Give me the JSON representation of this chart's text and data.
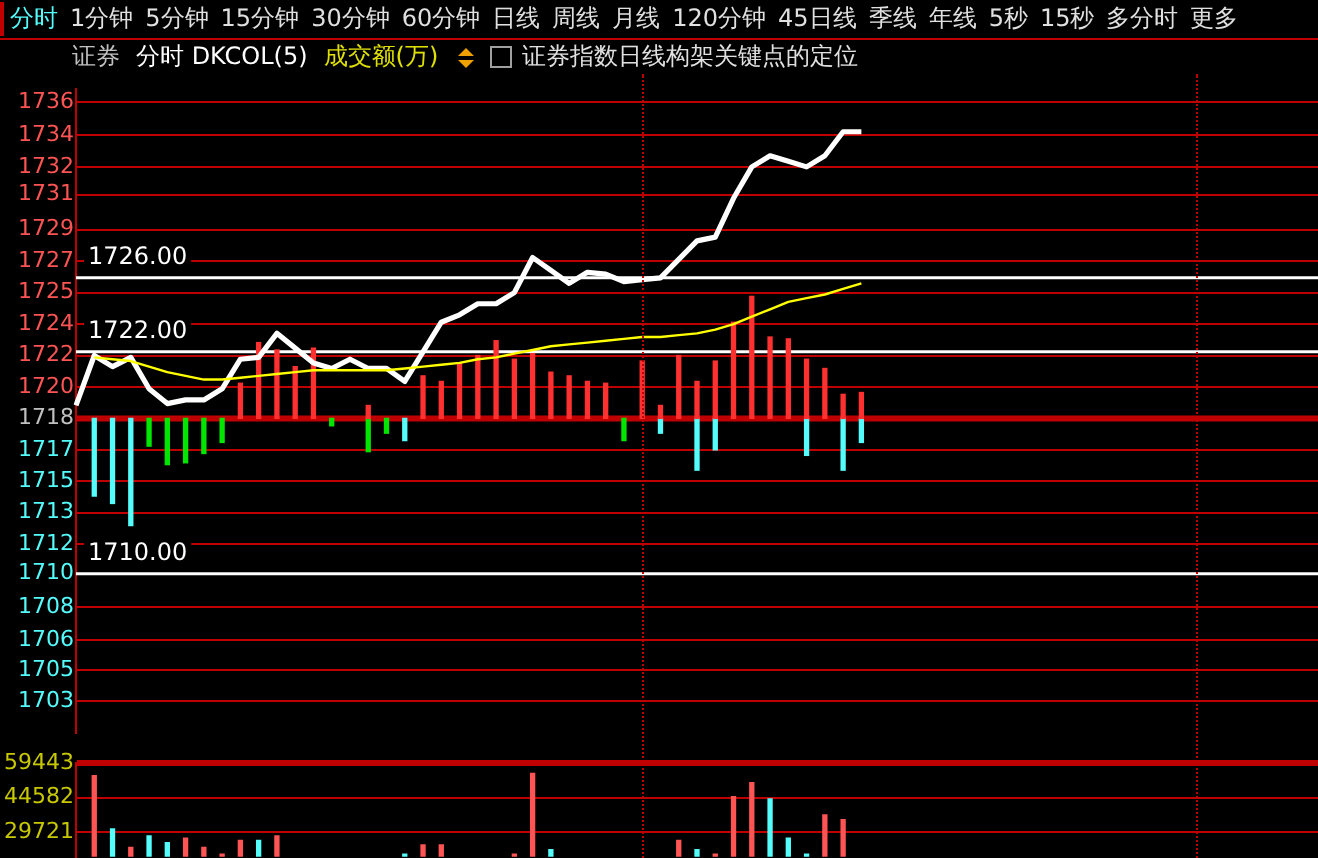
{
  "chart_data": [
    {
      "type": "bar",
      "title": "证券指数日线构架关键点的定位",
      "annotations": [
        "证券",
        "分时 DKCOL(5)",
        "成交额(万)",
        "分时",
        "1分钟",
        "5分钟",
        "15分钟",
        "30分钟",
        "60分钟",
        "日线",
        "周线",
        "月线",
        "120分钟",
        "45日线",
        "季线",
        "年线",
        "5秒",
        "15秒",
        "多分时",
        "更多"
      ],
      "categories": [
        null,
        null,
        null,
        null,
        null,
        null,
        null,
        null,
        null,
        null,
        null,
        null,
        null,
        null,
        null,
        null,
        null,
        null,
        null,
        null,
        null,
        null,
        null,
        null,
        null,
        null,
        null,
        null,
        null,
        null,
        null,
        null,
        null,
        null,
        null,
        null,
        null,
        null,
        null,
        null,
        null,
        null,
        null,
        null,
        null,
        null,
        null,
        null,
        null,
        null,
        null,
        null,
        null,
        null,
        null,
        null,
        null,
        null,
        null,
        null,
        null,
        null,
        null,
        null,
        null,
        null,
        null,
        null,
        null
      ],
      "series": [
        {
          "color": "#ff3030",
          "values": [
            null,
            null,
            null,
            null,
            null,
            null,
            null,
            null,
            null,
            1.9,
            4.1,
            3.7,
            2.8,
            3.8,
            null,
            null,
            0.7,
            null,
            null,
            2.3,
            2.0,
            3.0,
            3.4,
            4.2,
            3.2,
            3.5,
            2.5,
            2.3,
            2.0,
            1.9,
            null,
            3.1,
            0.7,
            3.4,
            2.0,
            3.1,
            5.2,
            6.6,
            4.4,
            4.3,
            3.2,
            2.7,
            1.3,
            1.4,
            null,
            null,
            null,
            null,
            null,
            null,
            null,
            null,
            null,
            null,
            null,
            null,
            null,
            null,
            null,
            null,
            null,
            null,
            null,
            null,
            null,
            null,
            null,
            null,
            null
          ],
          "base": [
            null,
            null,
            null,
            null,
            null,
            null,
            null,
            null,
            null,
            1718.4,
            1718.4,
            1718.4,
            1718.4,
            1718.4,
            null,
            null,
            1718.4,
            null,
            null,
            1718.4,
            1718.4,
            1718.4,
            1718.4,
            1718.4,
            1718.4,
            1718.4,
            1718.4,
            1718.4,
            1718.4,
            1718.4,
            null,
            1718.4,
            1718.4,
            1718.4,
            1718.4,
            1718.4,
            1718.4,
            1718.4,
            1718.4,
            1718.4,
            1718.4,
            1718.4,
            1718.4,
            1718.4,
            null,
            null,
            null,
            null,
            null,
            null,
            null,
            null,
            null,
            null,
            null,
            null,
            null,
            null,
            null,
            null,
            null,
            null,
            null,
            null,
            null,
            null,
            null,
            null,
            null
          ]
        },
        {
          "color": "#00e600",
          "values": [
            null,
            -4.2,
            -4.6,
            -5.8,
            -1.5,
            -2.5,
            -2.4,
            -1.9,
            -1.3,
            null,
            null,
            null,
            null,
            null,
            -0.4,
            null,
            -1.8,
            -0.8,
            -1.2,
            null,
            null,
            null,
            null,
            null,
            null,
            null,
            null,
            null,
            null,
            null,
            -1.2,
            null,
            -0.8,
            null,
            -2.8,
            -1.7,
            null,
            null,
            null,
            null,
            -2.0,
            null,
            -2.8,
            -1.3,
            null,
            null,
            null,
            null,
            null,
            null,
            null,
            null,
            null,
            null,
            null,
            null,
            null,
            null,
            null,
            null,
            null,
            null,
            null,
            null,
            null,
            null,
            null,
            null,
            null
          ],
          "base": [
            null,
            1718.4,
            1718.4,
            1718.4,
            1718.4,
            1718.4,
            1718.4,
            1718.4,
            1718.4,
            null,
            null,
            null,
            null,
            null,
            1718.4,
            null,
            1718.4,
            1718.4,
            1718.4,
            null,
            null,
            null,
            null,
            null,
            null,
            null,
            null,
            null,
            null,
            null,
            1718.4,
            null,
            1718.4,
            null,
            1718.4,
            1718.4,
            null,
            null,
            null,
            null,
            1718.4,
            null,
            1718.4,
            1718.4,
            null,
            null,
            null,
            null,
            null,
            null,
            null,
            null,
            null,
            null,
            null,
            null,
            null,
            null,
            null,
            null,
            null,
            null,
            null,
            null,
            null,
            null,
            null,
            null,
            null
          ],
          "colors": [
            null,
            "#54fcfc",
            "#54fcfc",
            "#54fcfc",
            "#00e600",
            "#00e600",
            "#00e600",
            "#00e600",
            "#00e600",
            null,
            null,
            null,
            null,
            null,
            "#00e600",
            null,
            "#00e600",
            "#00e600",
            "#54fcfc",
            null,
            null,
            null,
            null,
            null,
            null,
            null,
            null,
            null,
            null,
            null,
            "#00e600",
            null,
            "#54fcfc",
            null,
            "#54fcfc",
            "#54fcfc",
            null,
            null,
            null,
            null,
            "#54fcfc",
            null,
            "#54fcfc",
            "#54fcfc",
            null,
            null,
            null,
            null,
            null,
            null,
            null,
            null,
            null,
            null,
            null,
            null,
            null,
            null,
            null,
            null,
            null,
            null,
            null,
            null,
            null,
            null,
            null,
            null,
            null
          ]
        },
        {
          "type": "line",
          "color": "#ffff00",
          "values": [
            null,
            1721.7,
            1721.6,
            1721.5,
            1721.2,
            1720.9,
            1720.7,
            1720.5,
            1720.5,
            1720.6,
            1720.7,
            1720.8,
            1720.9,
            1721.0,
            1721.0,
            1721.0,
            1721.0,
            1721.0,
            1721.1,
            1721.2,
            1721.3,
            1721.4,
            1721.6,
            1721.7,
            1721.9,
            1722.1,
            1722.3,
            1722.4,
            1722.5,
            1722.6,
            1722.7,
            1722.8,
            1722.8,
            1722.9,
            1723.0,
            1723.2,
            1723.5,
            1723.9,
            1724.3,
            1724.7,
            1724.9,
            1725.1,
            1725.4,
            1725.7,
            null,
            null,
            null,
            null,
            null,
            null,
            null,
            null,
            null,
            null,
            null,
            null,
            null,
            null,
            null,
            null,
            null,
            null,
            null,
            null,
            null,
            null,
            null,
            null,
            null
          ]
        },
        {
          "type": "line",
          "color": "#ffffff",
          "values": [
            1719.1,
            1721.8,
            1721.2,
            1721.7,
            1720.0,
            1719.2,
            1719.4,
            1719.4,
            1720.0,
            1721.6,
            1721.7,
            1723.0,
            1722.2,
            1721.4,
            1721.1,
            1721.6,
            1721.1,
            1721.1,
            1720.4,
            1722.0,
            1723.6,
            1724.0,
            1724.6,
            1724.6,
            1725.2,
            1727.1,
            1726.4,
            1725.7,
            1726.3,
            1726.2,
            1725.8,
            1725.9,
            1726.0,
            1727.0,
            1728.0,
            1728.2,
            1730.3,
            1732.0,
            1732.6,
            1732.3,
            1732.0,
            1732.6,
            1733.9,
            1733.9,
            null,
            null,
            null,
            null,
            null,
            null,
            null,
            null,
            null,
            null,
            null,
            null,
            null,
            null,
            null,
            null,
            null,
            null,
            null,
            null,
            null,
            null,
            null,
            null,
            null
          ]
        }
      ],
      "ylim": [
        1701.4,
        1736.2
      ],
      "yticks": [
        {
          "value": 1703.1,
          "label": "1703"
        },
        {
          "value": 1704.8,
          "label": "1705"
        },
        {
          "value": 1706.4,
          "label": "1706"
        },
        {
          "value": 1708.2,
          "label": "1708"
        },
        1710,
        {
          "value": 1711.6,
          "label": "1712"
        },
        {
          "value": 1713.3,
          "label": "1713"
        },
        1715,
        {
          "value": 1716.7,
          "label": "1717"
        },
        {
          "value": 1718.4,
          "label": "1718"
        },
        {
          "value": 1720.1,
          "label": "1720"
        },
        {
          "value": 1721.8,
          "label": "1722"
        },
        {
          "value": 1723.5,
          "label": "1724"
        },
        {
          "value": 1725.2,
          "label": "1725"
        },
        {
          "value": 1726.9,
          "label": "1727"
        },
        {
          "value": 1728.6,
          "label": "1729"
        },
        {
          "value": 1730.5,
          "label": "1731"
        },
        1732,
        {
          "value": 1733.7,
          "label": "1734"
        },
        {
          "value": 1735.5,
          "label": "1736"
        }
      ],
      "grid": "y",
      "tick_labels": "y",
      "ref_lines": [
        {
          "axis": "y",
          "value": 1726,
          "label": "1726.00",
          "color": "#ffffff"
        },
        {
          "axis": "y",
          "value": 1722,
          "label": "1722.00",
          "color": "#ffffff"
        },
        {
          "axis": "y",
          "value": 1710,
          "label": "1710.00",
          "color": "#ffffff"
        },
        {
          "axis": "y",
          "value": 1718.4,
          "color": "#c00000"
        }
      ]
    },
    {
      "type": "bar",
      "categories": [
        null,
        null,
        null,
        null,
        null,
        null,
        null,
        null,
        null,
        null,
        null,
        null,
        null,
        null,
        null,
        null,
        null,
        null,
        null,
        null,
        null,
        null,
        null,
        null,
        null,
        null,
        null,
        null,
        null,
        null,
        null,
        null,
        null,
        null,
        null,
        null,
        null,
        null,
        null,
        null,
        null,
        null,
        null,
        null,
        null,
        null,
        null,
        null,
        null,
        null,
        null,
        null,
        null,
        null,
        null,
        null,
        null,
        null,
        null,
        null,
        null,
        null,
        null,
        null,
        null,
        null,
        null,
        null,
        null
      ],
      "values": [
        null,
        54000,
        31000,
        23000,
        28000,
        25000,
        27000,
        23000,
        20000,
        26000,
        26000,
        28000,
        null,
        null,
        null,
        null,
        null,
        null,
        20000,
        24000,
        24000,
        null,
        null,
        null,
        20000,
        55000,
        22000,
        null,
        null,
        null,
        null,
        null,
        null,
        26000,
        22000,
        20000,
        45000,
        51000,
        44000,
        27000,
        20000,
        37000,
        35000,
        null,
        null,
        null,
        null,
        null,
        null,
        null,
        null,
        null,
        null,
        null,
        null,
        null,
        null,
        null,
        null,
        null,
        null,
        null,
        null,
        null,
        null,
        null,
        null,
        null,
        null
      ],
      "colors": [
        null,
        "#ff5454",
        "#54fcfc",
        "#ff5454",
        "#54fcfc",
        "#54fcfc",
        "#ff5454",
        "#ff5454",
        "#ff5454",
        "#ff5454",
        "#54fcfc",
        "#ff5454",
        null,
        null,
        null,
        null,
        null,
        null,
        "#54fcfc",
        "#ff5454",
        "#ff5454",
        null,
        null,
        null,
        "#ff5454",
        "#ff5454",
        "#54fcfc",
        null,
        null,
        null,
        null,
        null,
        null,
        "#ff5454",
        "#54fcfc",
        "#ff5454",
        "#ff5454",
        "#ff5454",
        "#54fcfc",
        "#54fcfc",
        "#54fcfc",
        "#ff5454",
        "#ff5454",
        null,
        null,
        null,
        null,
        null,
        null,
        null,
        null,
        null,
        null,
        null,
        null,
        null,
        null,
        null,
        null,
        null,
        null,
        null,
        null,
        null,
        null,
        null,
        null,
        null,
        null
      ],
      "ylim": [
        18900,
        59443
      ],
      "yticks": [
        29721,
        44582,
        59443
      ],
      "grid": "y",
      "tick_labels": "y"
    }
  ]
}
